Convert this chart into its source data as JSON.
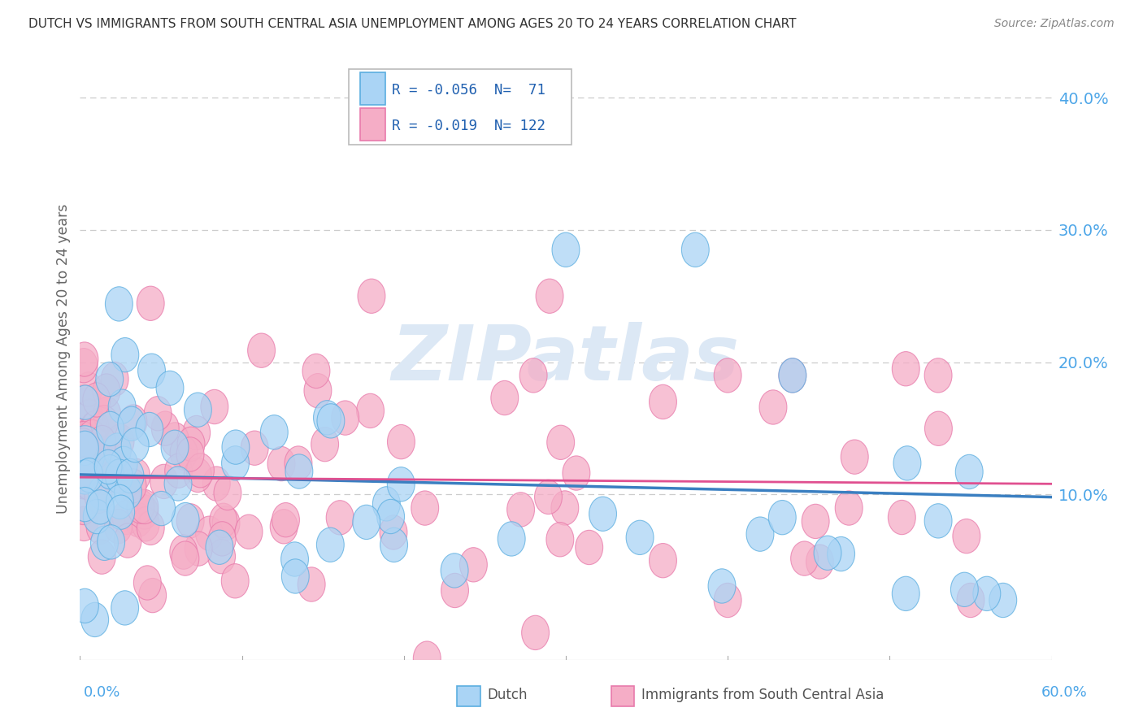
{
  "title": "DUTCH VS IMMIGRANTS FROM SOUTH CENTRAL ASIA UNEMPLOYMENT AMONG AGES 20 TO 24 YEARS CORRELATION CHART",
  "source": "Source: ZipAtlas.com",
  "ylabel": "Unemployment Among Ages 20 to 24 years",
  "ytick_vals": [
    0.1,
    0.2,
    0.3,
    0.4
  ],
  "ytick_labels": [
    "10.0%",
    "20.0%",
    "30.0%",
    "40.0%"
  ],
  "xlim": [
    0.0,
    0.6
  ],
  "ylim": [
    -0.025,
    0.43
  ],
  "legend_dutch_R": "-0.056",
  "legend_dutch_N": "71",
  "legend_immigrants_R": "-0.019",
  "legend_immigrants_N": "122",
  "dutch_fill_color": "#aad4f5",
  "dutch_edge_color": "#5baee0",
  "dutch_line_color": "#3a7fc1",
  "immigrants_fill_color": "#f5adc6",
  "immigrants_edge_color": "#e87aab",
  "immigrants_line_color": "#e05090",
  "background_color": "#ffffff",
  "grid_color": "#cccccc",
  "tick_color": "#4da6e8",
  "ylabel_color": "#666666",
  "title_color": "#333333",
  "source_color": "#888888",
  "watermark_color": "#dce8f5",
  "legend_text_color": "#2060b0",
  "legend_R_color": "#e05090"
}
